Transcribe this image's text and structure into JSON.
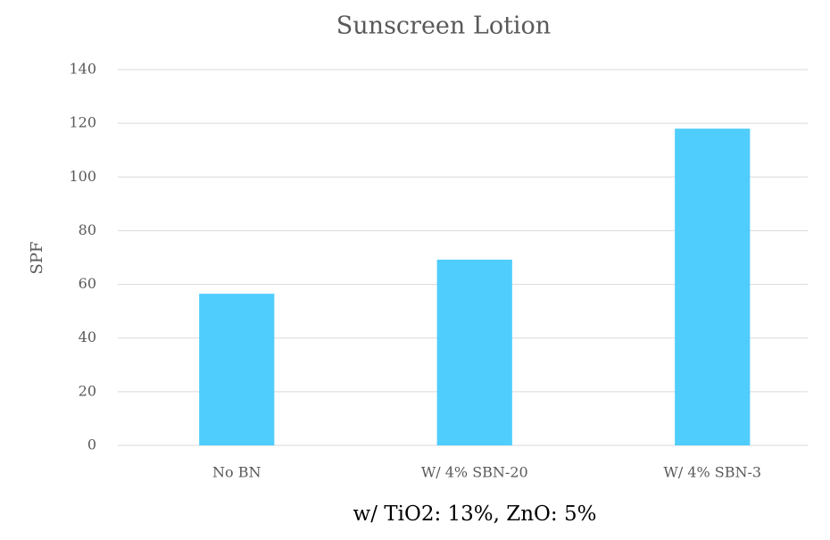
{
  "chart_data": {
    "type": "bar",
    "title": "Sunscreen Lotion",
    "x_label": "w/ TiO2: 13%, ZnO: 5%",
    "y_label": "SPF",
    "categories": [
      "No BN",
      "W/ 4% SBN-20",
      "W/ 4% SBN-3"
    ],
    "values": [
      56.5,
      69.2,
      118
    ],
    "color": "#4fcdfc",
    "ylim": [
      0,
      140
    ],
    "yticks": [
      0,
      20,
      40,
      60,
      80,
      100,
      120,
      140
    ],
    "grid": true
  }
}
